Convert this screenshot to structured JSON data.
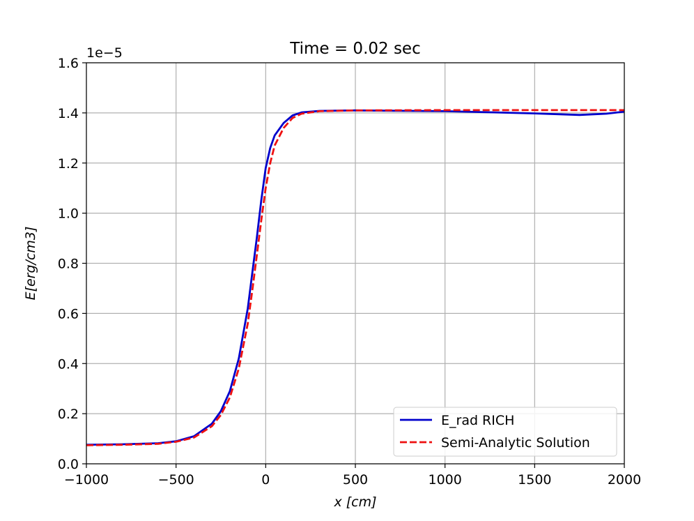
{
  "chart_data": {
    "type": "line",
    "title": "Time = 0.02 sec",
    "xlabel": "x [cm]",
    "ylabel": "E[erg/cm3]",
    "xlim": [
      -1000,
      2000
    ],
    "ylim": [
      0.0,
      1.6
    ],
    "y_offset_label": "1e−5",
    "xticks": [
      -1000,
      -500,
      0,
      500,
      1000,
      1500,
      2000
    ],
    "xtick_labels": [
      "−1000",
      "−500",
      "0",
      "500",
      "1000",
      "1500",
      "2000"
    ],
    "yticks": [
      0.0,
      0.2,
      0.4,
      0.6,
      0.8,
      1.0,
      1.2,
      1.4,
      1.6
    ],
    "ytick_labels": [
      "0.0",
      "0.2",
      "0.4",
      "0.6",
      "0.8",
      "1.0",
      "1.2",
      "1.4",
      "1.6"
    ],
    "grid": true,
    "legend_position": "lower-right",
    "series": [
      {
        "name": "E_rad RICH",
        "color": "#0000cc",
        "style": "solid",
        "x": [
          -1000,
          -800,
          -600,
          -500,
          -400,
          -300,
          -250,
          -200,
          -150,
          -100,
          -75,
          -50,
          -25,
          0,
          25,
          50,
          100,
          150,
          200,
          300,
          500,
          1000,
          1500,
          1750,
          1900,
          2000
        ],
        "y": [
          0.076,
          0.078,
          0.082,
          0.09,
          0.11,
          0.16,
          0.21,
          0.29,
          0.42,
          0.62,
          0.76,
          0.9,
          1.05,
          1.18,
          1.26,
          1.31,
          1.36,
          1.39,
          1.402,
          1.408,
          1.41,
          1.407,
          1.398,
          1.392,
          1.397,
          1.405
        ]
      },
      {
        "name": "Semi-Analytic Solution",
        "color": "#ee1111",
        "style": "dashed",
        "x": [
          -1000,
          -800,
          -600,
          -500,
          -400,
          -300,
          -250,
          -200,
          -150,
          -100,
          -75,
          -50,
          -25,
          0,
          25,
          50,
          100,
          150,
          200,
          300,
          500,
          1000,
          1500,
          2000
        ],
        "y": [
          0.074,
          0.076,
          0.08,
          0.088,
          0.105,
          0.15,
          0.195,
          0.265,
          0.38,
          0.56,
          0.69,
          0.83,
          0.97,
          1.1,
          1.2,
          1.27,
          1.34,
          1.38,
          1.397,
          1.407,
          1.41,
          1.411,
          1.411,
          1.411
        ]
      }
    ]
  }
}
